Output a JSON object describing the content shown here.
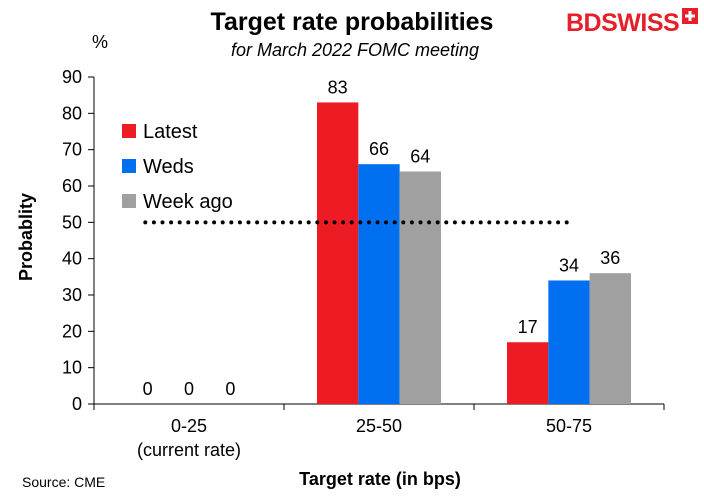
{
  "brand": {
    "name": "BDSWISS",
    "color": "#e4202a"
  },
  "chart_data": {
    "type": "bar",
    "title": "Target rate probabilities",
    "subtitle": "for March 2022 FOMC meeting",
    "unit_label": "%",
    "ylabel": "Probablity",
    "xlabel": "Target rate (in bps)",
    "source": "Source: CME",
    "ylim": [
      0,
      90
    ],
    "yticks": [
      0,
      10,
      20,
      30,
      40,
      50,
      60,
      70,
      80,
      90
    ],
    "categories": [
      [
        "0-25",
        "(current rate)"
      ],
      [
        "25-50"
      ],
      [
        "50-75"
      ]
    ],
    "series": [
      {
        "name": "Latest",
        "color": "#ed1c24",
        "values": [
          0,
          83,
          17
        ]
      },
      {
        "name": "Weds",
        "color": "#0070f0",
        "values": [
          0,
          66,
          34
        ]
      },
      {
        "name": "Week ago",
        "color": "#a0a0a0",
        "values": [
          0,
          64,
          36
        ]
      }
    ],
    "reference_line": {
      "value": 50,
      "style": "dotted"
    },
    "legend_position": "left",
    "grid": false
  }
}
